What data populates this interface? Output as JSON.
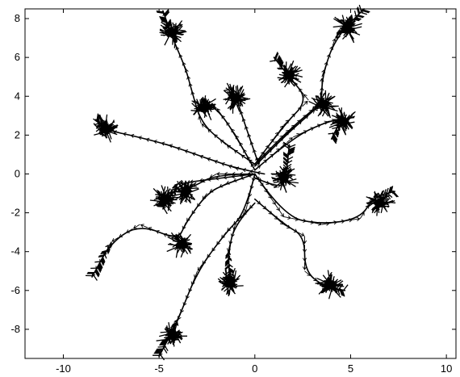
{
  "chart_data": {
    "type": "quiver",
    "title": "",
    "xlabel": "",
    "ylabel": "",
    "xlim": [
      -12,
      10.5
    ],
    "ylim": [
      -9.5,
      8.5
    ],
    "xticks": [
      -10,
      -5,
      0,
      5,
      10
    ],
    "yticks": [
      -8,
      -6,
      -4,
      -2,
      0,
      2,
      4,
      6,
      8
    ],
    "xtick_labels": [
      "-10",
      "-5",
      "0",
      "5",
      "10"
    ],
    "ytick_labels": [
      "-8",
      "-6",
      "-4",
      "-2",
      "0",
      "2",
      "4",
      "6",
      "8"
    ],
    "grid": false,
    "series": [
      {
        "points": [
          [
            0.5,
            0.0
          ],
          [
            -1.0,
            0.3
          ],
          [
            -2.5,
            0.8
          ],
          [
            -4.5,
            1.5
          ],
          [
            -6.5,
            2.0
          ],
          [
            -7.5,
            2.2
          ],
          [
            -8.3,
            2.8
          ]
        ],
        "end_cluster": [
          -7.8,
          2.3
        ]
      },
      {
        "points": [
          [
            0.0,
            0.5
          ],
          [
            -1.5,
            1.5
          ],
          [
            -2.8,
            2.6
          ],
          [
            -3.3,
            4.3
          ],
          [
            -3.6,
            5.4
          ],
          [
            -4.3,
            7.0
          ],
          [
            -4.8,
            8.4
          ]
        ],
        "end_cluster": [
          -4.3,
          7.3
        ]
      },
      {
        "points": [
          [
            0.0,
            0.2
          ],
          [
            -1.0,
            2.0
          ],
          [
            -2.0,
            3.4
          ],
          [
            -2.7,
            3.6
          ]
        ],
        "end_cluster": [
          -2.7,
          3.4
        ]
      },
      {
        "points": [
          [
            0.2,
            0.5
          ],
          [
            -0.5,
            2.5
          ],
          [
            -1.0,
            4.0
          ],
          [
            -1.3,
            4.4
          ]
        ],
        "end_cluster": [
          -1.0,
          3.9
        ]
      },
      {
        "points": [
          [
            0.0,
            0.5
          ],
          [
            1.5,
            2.0
          ],
          [
            3.0,
            3.3
          ],
          [
            3.6,
            3.6
          ]
        ],
        "end_cluster": [
          3.6,
          3.6
        ]
      },
      {
        "points": [
          [
            0.0,
            0.4
          ],
          [
            1.8,
            2.2
          ],
          [
            3.5,
            3.6
          ],
          [
            3.5,
            5.0
          ],
          [
            4.2,
            7.0
          ],
          [
            5.7,
            8.5
          ]
        ],
        "end_cluster": [
          4.8,
          7.5
        ]
      },
      {
        "points": [
          [
            0.0,
            0.5
          ],
          [
            1.5,
            2.5
          ],
          [
            2.8,
            3.8
          ],
          [
            1.8,
            5.0
          ],
          [
            1.0,
            6.0
          ]
        ],
        "end_cluster": [
          1.8,
          5.1
        ]
      },
      {
        "points": [
          [
            0.0,
            0.2
          ],
          [
            2.0,
            1.9
          ],
          [
            3.8,
            2.7
          ],
          [
            4.5,
            2.8
          ],
          [
            4.0,
            1.8
          ]
        ],
        "end_cluster": [
          4.6,
          2.7
        ]
      },
      {
        "points": [
          [
            0.0,
            0.0
          ],
          [
            1.5,
            -2.2
          ],
          [
            3.5,
            -2.6
          ],
          [
            5.5,
            -2.3
          ],
          [
            6.2,
            -1.2
          ],
          [
            7.3,
            -0.9
          ]
        ],
        "end_cluster": [
          6.5,
          -1.5
        ]
      },
      {
        "points": [
          [
            0.0,
            -0.2
          ],
          [
            1.2,
            -0.7
          ],
          [
            1.6,
            -0.4
          ],
          [
            1.8,
            1.5
          ]
        ],
        "end_cluster": [
          1.5,
          -0.2
        ]
      },
      {
        "points": [
          [
            0.0,
            0.0
          ],
          [
            -2.0,
            0.0
          ],
          [
            -3.3,
            -0.7
          ],
          [
            -4.0,
            -0.9
          ]
        ],
        "end_cluster": [
          -3.6,
          -0.9
        ]
      },
      {
        "points": [
          [
            0.0,
            0.0
          ],
          [
            -2.5,
            -0.3
          ],
          [
            -4.0,
            -0.5
          ],
          [
            -4.8,
            -1.8
          ]
        ],
        "end_cluster": [
          -4.7,
          -1.3
        ]
      },
      {
        "points": [
          [
            0.0,
            0.0
          ],
          [
            -1.5,
            -0.5
          ],
          [
            -2.5,
            -1.0
          ],
          [
            -3.6,
            -2.5
          ],
          [
            -4.0,
            -3.4
          ],
          [
            -6.0,
            -2.6
          ],
          [
            -7.5,
            -3.5
          ],
          [
            -8.5,
            -5.3
          ]
        ],
        "end_cluster": [
          -3.8,
          -3.6
        ]
      },
      {
        "points": [
          [
            0.0,
            0.0
          ],
          [
            -0.5,
            -2.0
          ],
          [
            -1.5,
            -3.0
          ],
          [
            -3.0,
            -5.0
          ],
          [
            -4.0,
            -7.5
          ],
          [
            -5.0,
            -9.4
          ]
        ],
        "end_cluster": [
          -4.3,
          -8.3
        ]
      },
      {
        "points": [
          [
            0.0,
            -1.5
          ],
          [
            -1.0,
            -2.5
          ],
          [
            -1.4,
            -4.0
          ],
          [
            -1.3,
            -5.8
          ]
        ],
        "end_cluster": [
          -1.3,
          -5.6
        ]
      },
      {
        "points": [
          [
            0.0,
            -1.3
          ],
          [
            1.5,
            -2.6
          ],
          [
            2.6,
            -3.2
          ],
          [
            2.6,
            -5.0
          ],
          [
            3.6,
            -5.8
          ],
          [
            4.7,
            -6.0
          ]
        ],
        "end_cluster": [
          3.9,
          -5.7
        ]
      }
    ]
  }
}
